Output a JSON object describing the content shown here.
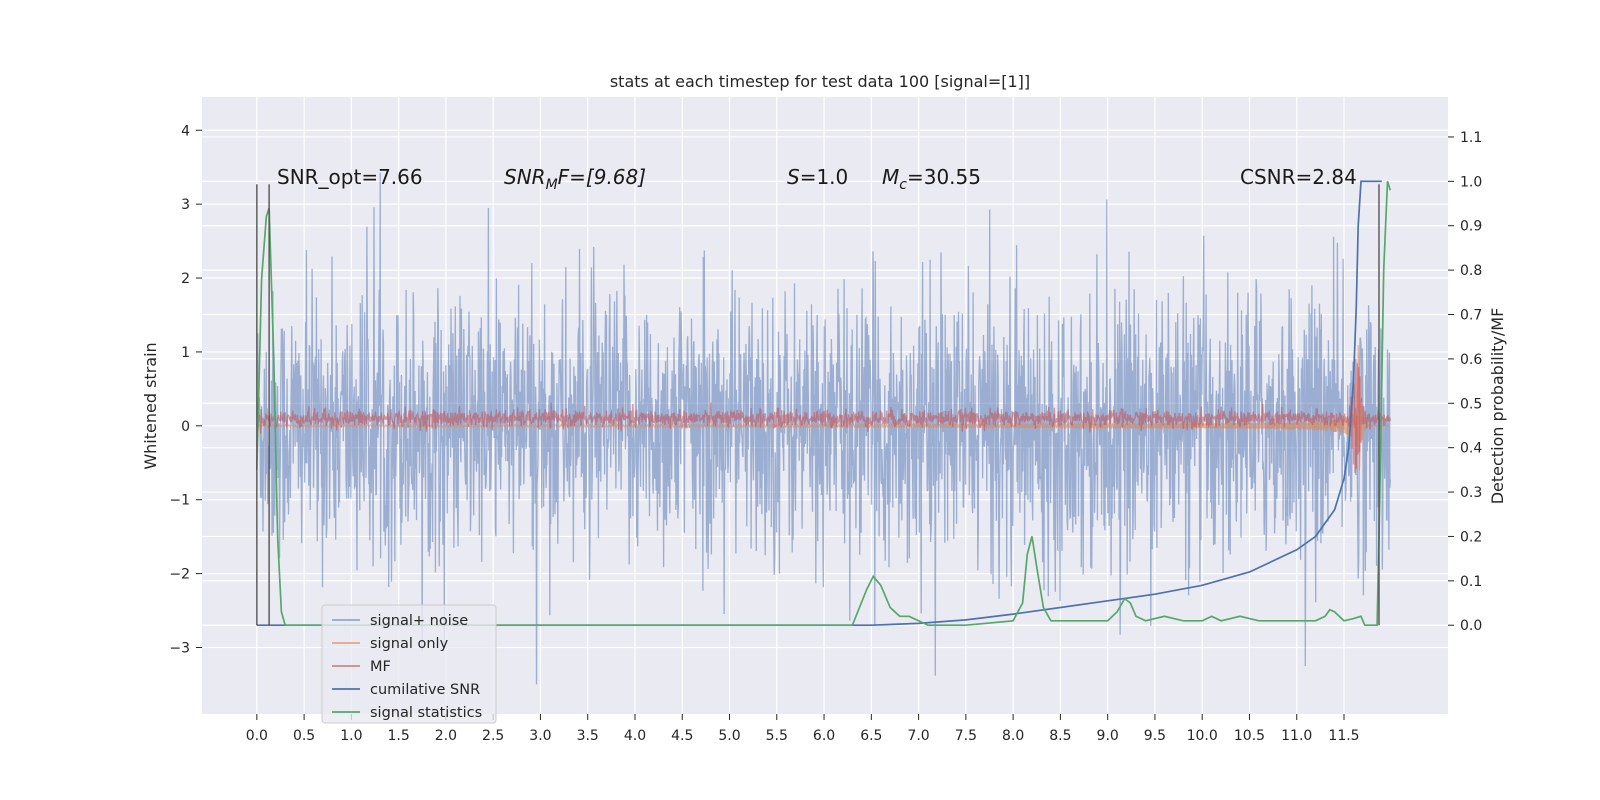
{
  "chart_data": {
    "type": "line",
    "title": "stats at each timestep for test data 100 [signal=[1]]",
    "xlabel": "",
    "ylabel_left": "Whitened strain",
    "ylabel_right": "Detection probability/MF",
    "xlim": [
      -0.58,
      12.6
    ],
    "ylim_left": [
      -3.9,
      4.45
    ],
    "ylim_right": [
      -0.2,
      1.19
    ],
    "x_ticks": [
      0.0,
      0.5,
      1.0,
      1.5,
      2.0,
      2.5,
      3.0,
      3.5,
      4.0,
      4.5,
      5.0,
      5.5,
      6.0,
      6.5,
      7.0,
      7.5,
      8.0,
      8.5,
      9.0,
      9.5,
      10.0,
      10.5,
      11.0,
      11.5
    ],
    "x_tick_labels": [
      "0.0",
      "0.5",
      "1.0",
      "1.5",
      "2.0",
      "2.5",
      "3.0",
      "3.5",
      "4.0",
      "4.5",
      "5.0",
      "5.5",
      "6.0",
      "6.5",
      "7.0",
      "7.5",
      "8.0",
      "8.5",
      "9.0",
      "9.5",
      "10.0",
      "10.5",
      "11.0",
      "11.5"
    ],
    "y_left_ticks": [
      4,
      3,
      2,
      1,
      0,
      -1,
      -2,
      -3
    ],
    "y_left_tick_labels": [
      "4",
      "3",
      "2",
      "1",
      "0",
      "−1",
      "−2",
      "−3"
    ],
    "y_right_ticks": [
      1.1,
      1.0,
      0.9,
      0.8,
      0.7,
      0.6,
      0.5,
      0.4,
      0.3,
      0.2,
      0.1,
      0.0
    ],
    "y_right_tick_labels": [
      "1.1",
      "1.0",
      "0.9",
      "0.8",
      "0.7",
      "0.6",
      "0.5",
      "0.4",
      "0.3",
      "0.2",
      "0.1",
      "0.0"
    ],
    "grid": true,
    "legend_position": "lower-left",
    "annotations": {
      "snr_opt": "SNR_opt=7.66",
      "snr_mf_prefix": "SNR",
      "snr_mf_sub": "M",
      "snr_mf_suffix": "F=[9.68]",
      "s_symbol": "S",
      "s_value": "=1.0",
      "mc_symbol": "M",
      "mc_sub": "c",
      "mc_value": "=30.55",
      "csnr": "CSNR=2.84"
    },
    "colors": {
      "background": "#eaeaf2",
      "grid": "#ffffff",
      "signal_noise": "#4c72b0",
      "signal_only": "#dd8452",
      "mf": "#c44e52",
      "cumulative_snr": "#4c72b0",
      "signal_statistics": "#55a868",
      "vline": "#555555"
    },
    "vlines_x": [
      0.0,
      0.13,
      11.87
    ],
    "series": [
      {
        "name": "signal+ noise",
        "axis": "left",
        "description_kind": "noise",
        "x_range": [
          0.0,
          11.99
        ],
        "std": 0.9
      },
      {
        "name": "signal only",
        "axis": "left",
        "description_kind": "chirp",
        "x_range": [
          0.0,
          11.99
        ],
        "peak_x": 11.65,
        "peak": 1.1
      },
      {
        "name": "MF",
        "axis": "left",
        "description_kind": "mf",
        "x_range": [
          0.0,
          11.99
        ],
        "mean": 0.1,
        "std": 0.06
      },
      {
        "name": "cumilative SNR",
        "axis": "right",
        "x": [
          0.0,
          0.5,
          1,
          1.5,
          2,
          2.5,
          3,
          3.5,
          4,
          4.5,
          5,
          5.5,
          6,
          6.5,
          7,
          7.5,
          8,
          8.5,
          9,
          9.5,
          10,
          10.5,
          11,
          11.2,
          11.4,
          11.5,
          11.55,
          11.6,
          11.63,
          11.65,
          11.68,
          11.7,
          11.75,
          11.8,
          11.85,
          11.9
        ],
        "y": [
          0.0,
          0.0,
          0.0,
          0.0,
          0.0,
          0.0,
          0.0,
          0.0,
          0.0,
          0.0,
          0.0,
          0.0,
          0.0,
          0.0,
          0.004,
          0.012,
          0.025,
          0.04,
          0.055,
          0.07,
          0.09,
          0.12,
          0.17,
          0.2,
          0.26,
          0.33,
          0.4,
          0.55,
          0.72,
          0.9,
          1.0,
          1.0,
          1.0,
          1.0,
          1.0,
          1.0
        ]
      },
      {
        "name": "signal statistics",
        "axis": "right",
        "x": [
          0.0,
          0.05,
          0.1,
          0.13,
          0.18,
          0.22,
          0.26,
          0.3,
          0.4,
          0.6,
          1,
          2,
          3,
          4,
          5,
          6,
          6.3,
          6.45,
          6.52,
          6.6,
          6.7,
          6.8,
          6.9,
          7.1,
          7.5,
          8.0,
          8.1,
          8.15,
          8.2,
          8.25,
          8.32,
          8.4,
          8.5,
          9.0,
          9.1,
          9.18,
          9.24,
          9.3,
          9.4,
          9.6,
          9.8,
          10.0,
          10.1,
          10.2,
          10.4,
          10.6,
          10.8,
          11.0,
          11.1,
          11.2,
          11.3,
          11.35,
          11.4,
          11.5,
          11.6,
          11.68,
          11.72,
          11.75,
          11.8,
          11.85,
          11.88,
          11.92,
          11.96,
          11.99
        ],
        "y": [
          0.35,
          0.78,
          0.92,
          0.94,
          0.6,
          0.2,
          0.03,
          0.0,
          0.0,
          0.0,
          0.0,
          0.0,
          0.0,
          0.0,
          0.0,
          0.0,
          0.0,
          0.08,
          0.11,
          0.09,
          0.04,
          0.02,
          0.02,
          0.0,
          0.0,
          0.01,
          0.05,
          0.16,
          0.2,
          0.13,
          0.04,
          0.01,
          0.01,
          0.01,
          0.03,
          0.06,
          0.05,
          0.02,
          0.01,
          0.02,
          0.01,
          0.01,
          0.02,
          0.01,
          0.02,
          0.01,
          0.01,
          0.01,
          0.01,
          0.01,
          0.02,
          0.035,
          0.03,
          0.01,
          0.015,
          0.02,
          0.0,
          0.0,
          0.0,
          0.0,
          0.3,
          0.8,
          1.0,
          0.98
        ]
      }
    ]
  }
}
